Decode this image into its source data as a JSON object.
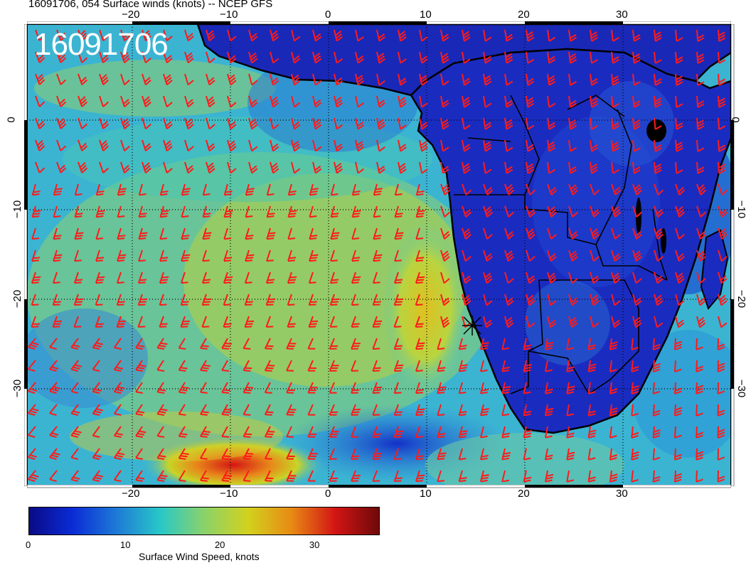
{
  "header": {
    "title": "16091706, 054 Surface winds (knots) -- NCEP GFS",
    "run_id": "16091706"
  },
  "map": {
    "region": "Southern Africa and South Atlantic",
    "lon_ticks": [
      "-20",
      "-10",
      "0",
      "10",
      "20",
      "30"
    ],
    "lat_ticks": [
      "0",
      "-10",
      "-20",
      "-30"
    ],
    "barb_color": "#ff1a1a",
    "land_outline_color": "#000000",
    "marker": "asterisk"
  },
  "colorbar": {
    "title": "Surface Wind Speed, knots",
    "tick_labels": [
      "0",
      "10",
      "20",
      "30"
    ],
    "range": [
      0,
      37
    ],
    "colors": [
      "#0a0a85",
      "#0a2cd6",
      "#1e7ad6",
      "#28c8c8",
      "#8ad26a",
      "#d2d21e",
      "#e88a14",
      "#d21414",
      "#6e0a0a"
    ]
  }
}
